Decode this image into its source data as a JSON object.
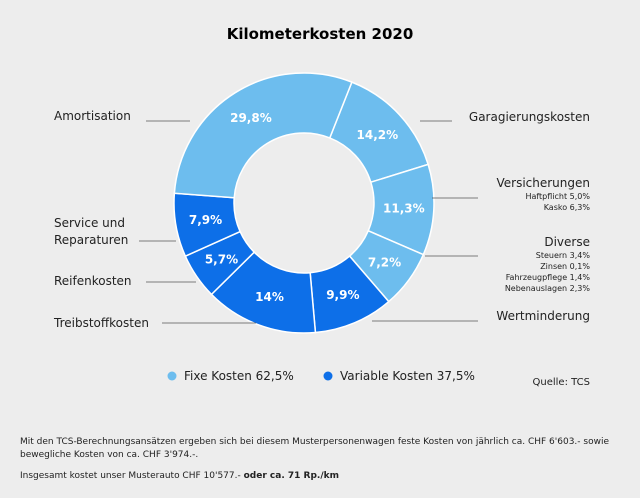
{
  "chart_data": {
    "type": "pie",
    "title": "Kilometerkosten 2020",
    "slices": [
      {
        "label": "Garagierungskosten",
        "value": 14.2,
        "value_label": "14,2%",
        "group": "fixed",
        "sub": []
      },
      {
        "label": "Versicherungen",
        "value": 11.3,
        "value_label": "11,3%",
        "group": "fixed",
        "sub": [
          "Haftpflicht 5,0%",
          "Kasko 6,3%"
        ]
      },
      {
        "label": "Diverse",
        "value": 7.2,
        "value_label": "7,2%",
        "group": "fixed",
        "sub": [
          "Steuern 3,4%",
          "Zinsen 0,1%",
          "Fahrzeugpflege 1,4%",
          "Nebenauslagen 2,3%"
        ]
      },
      {
        "label": "Wertminderung",
        "value": 9.9,
        "value_label": "9,9%",
        "group": "variable",
        "sub": []
      },
      {
        "label": "Treibstoffkosten",
        "value": 14,
        "value_label": "14%",
        "group": "variable",
        "sub": []
      },
      {
        "label": "Reifenkosten",
        "value": 5.7,
        "value_label": "5,7%",
        "group": "variable",
        "sub": []
      },
      {
        "label": "Service und Reparaturen",
        "value": 7.9,
        "value_label": "7,9%",
        "group": "variable",
        "sub": []
      },
      {
        "label": "Amortisation",
        "value": 29.8,
        "value_label": "29,8%",
        "group": "fixed",
        "sub": []
      }
    ],
    "legend": [
      {
        "label": "Fixe Kosten 62,5%",
        "group": "fixed"
      },
      {
        "label": "Variable Kosten 37,5%",
        "group": "variable"
      }
    ],
    "colors": {
      "fixed": "#6dbdee",
      "variable": "#0d6fe8"
    }
  },
  "source": "Quelle: TCS",
  "notes": {
    "line1": "Mit den TCS-Berechnungsansätzen ergeben sich bei diesem Musterpersonenwagen feste Kosten von jährlich ca. CHF 6'603.- sowie bewegliche Kosten von ca. CHF 3'974.-.",
    "line2": "Insgesamt kostet unser Musterauto CHF 10'577.-",
    "line2_bold": "oder ca. 71 Rp./km"
  }
}
